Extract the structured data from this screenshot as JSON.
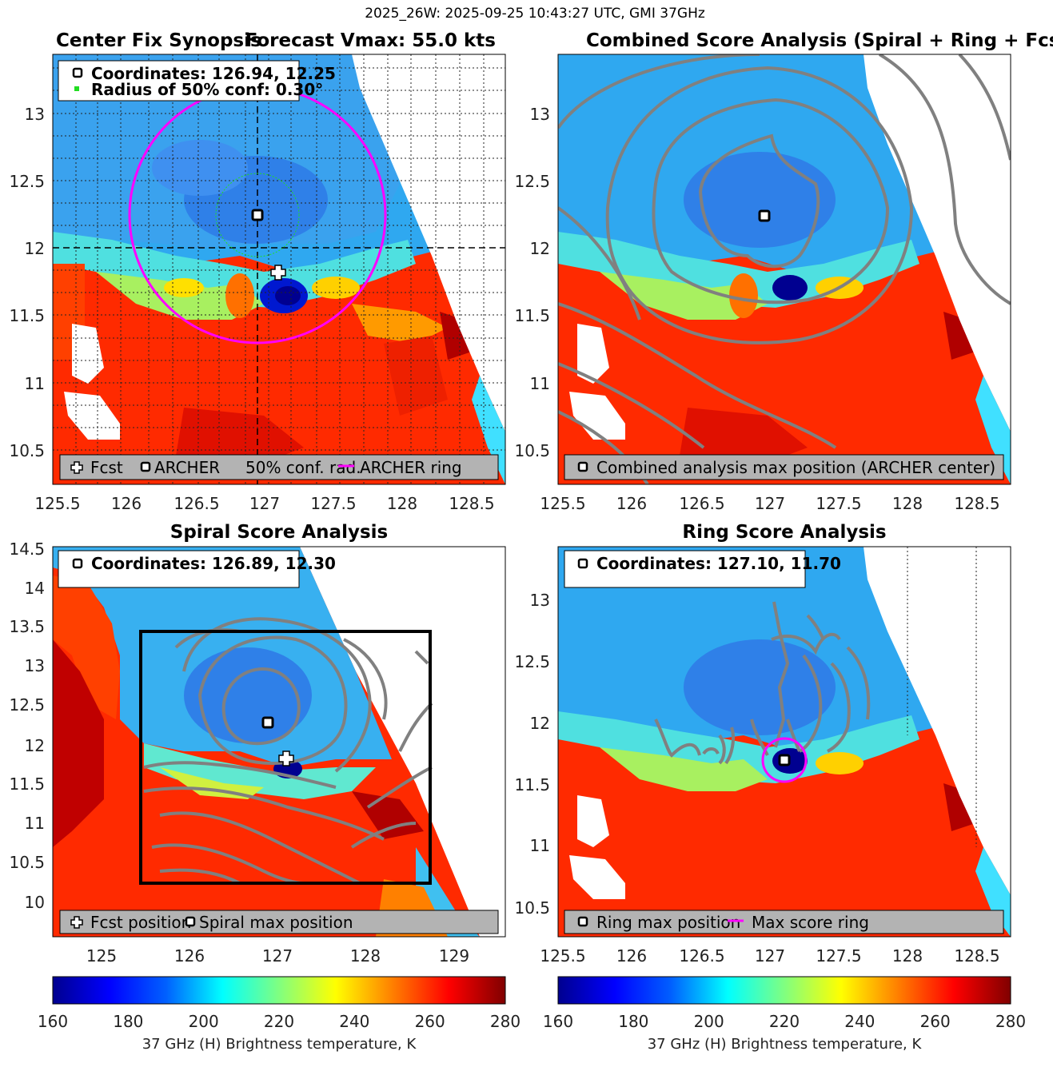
{
  "suptitle": "2025_26W: 2025-09-25 10:43:27 UTC, GMI 37GHz",
  "colors": {
    "magenta": "#ff00ff",
    "green": "#22dd22",
    "contour": "#808080",
    "legend_bg": "#b3b3b3",
    "colormap": [
      "#00008f",
      "#0000ff",
      "#0080ff",
      "#00ffff",
      "#80ff80",
      "#ffff00",
      "#ff8000",
      "#ff0000",
      "#800000"
    ]
  },
  "panels": {
    "synopsis": {
      "title_left": "Center Fix Synopsis",
      "title_right": "Forecast Vmax: 55.0 kts",
      "info_line1": "Coordinates: 126.94, 12.25",
      "info_line2": "Radius of 50% conf: 0.30°",
      "legend": {
        "fcst": "Fcst",
        "archer": "ARCHER",
        "conf": "50% conf. rad.",
        "ring": "ARCHER ring"
      }
    },
    "combined": {
      "title": "Combined Score Analysis (Spiral + Ring + Fcst_Pe",
      "legend": "Combined analysis max position (ARCHER center)"
    },
    "spiral": {
      "title": "Spiral Score Analysis",
      "info": "Coordinates: 126.89, 12.30",
      "legend": {
        "fcst": "Fcst position",
        "max": "Spiral max position"
      }
    },
    "ring": {
      "title": "Ring Score Analysis",
      "info": "Coordinates: 127.10, 11.70",
      "legend": {
        "max": "Ring max position",
        "ring": "Max score ring"
      }
    }
  },
  "colorbar": {
    "label": "37 GHz (H) Brightness temperature, K",
    "ticks": [
      "160",
      "180",
      "200",
      "220",
      "240",
      "260",
      "280"
    ]
  },
  "chart_data": [
    {
      "type": "heatmap",
      "name": "Center Fix Synopsis",
      "xlim": [
        125.45,
        128.7
      ],
      "ylim": [
        10.25,
        13.45
      ],
      "xticks": [
        "125.5",
        "126",
        "126.5",
        "127",
        "127.5",
        "128",
        "128.5"
      ],
      "yticks": [
        "10.5",
        "11",
        "11.5",
        "12",
        "12.5",
        "13"
      ],
      "archer_center": [
        126.94,
        12.25
      ],
      "fcst_position": [
        127.09,
        11.84
      ],
      "conf_radius_deg": 0.3,
      "archer_ring_radius_deg": 0.93,
      "cold_core": [
        127.12,
        11.62
      ],
      "value_range_K": [
        160,
        280
      ]
    },
    {
      "type": "heatmap",
      "name": "Combined Score Analysis",
      "xlim": [
        125.45,
        128.7
      ],
      "ylim": [
        10.25,
        13.45
      ],
      "xticks": [
        "125.5",
        "126",
        "126.5",
        "127",
        "127.5",
        "128",
        "128.5"
      ],
      "yticks": [
        "10.5",
        "11",
        "11.5",
        "12",
        "12.5",
        "13"
      ],
      "max_position": [
        126.94,
        12.25
      ]
    },
    {
      "type": "heatmap",
      "name": "Spiral Score Analysis",
      "xlim": [
        124.4,
        129.55
      ],
      "ylim": [
        9.6,
        14.6
      ],
      "xticks": [
        "125",
        "126",
        "127",
        "128",
        "129"
      ],
      "yticks": [
        "10",
        "10.5",
        "11",
        "11.5",
        "12",
        "12.5",
        "13",
        "13.5",
        "14",
        "14.5"
      ],
      "max_position": [
        126.89,
        12.3
      ],
      "fcst_position": [
        127.09,
        11.84
      ],
      "search_box": {
        "lon": [
          125.45,
          128.75
        ],
        "lat": [
          10.25,
          13.45
        ]
      }
    },
    {
      "type": "heatmap",
      "name": "Ring Score Analysis",
      "xlim": [
        125.45,
        128.7
      ],
      "ylim": [
        10.25,
        13.45
      ],
      "xticks": [
        "125.5",
        "126",
        "126.5",
        "127",
        "127.5",
        "128",
        "128.5"
      ],
      "yticks": [
        "10.5",
        "11",
        "11.5",
        "12",
        "12.5",
        "13"
      ],
      "max_position": [
        127.1,
        11.7
      ],
      "max_score_ring_radius_deg": 0.17
    }
  ]
}
